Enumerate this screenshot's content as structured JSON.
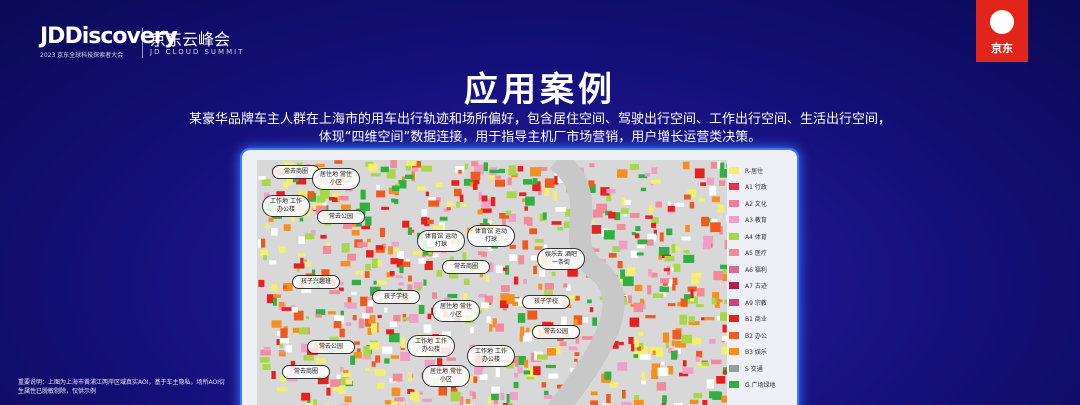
{
  "header": {
    "logo": "JDDiscovery",
    "logo_sub": "2023 京东全球科技探索者大会",
    "summit_cn": "京东云峰会",
    "summit_en": "JD CLOUD SUMMIT",
    "brand": "京东"
  },
  "title": "应用案例",
  "description": [
    "某豪华品牌车主人群在上海市的用车出行轨迹和场所偏好，包含居住空间、驾驶出行空间、工作出行空间、生活出行空间，",
    "体现“四维空间”数据连接，用于指导主机厂市场营销，用户增长运营类决策。"
  ],
  "map": {
    "labels": [
      "常去商圈",
      "居住地 常住小区",
      "工作地 工作办公楼",
      "常去公园",
      "体育馆 运动打球",
      "体育馆 运动打球",
      "常去商圈",
      "娱乐去 酒吧一条街",
      "孩子兴趣班",
      "孩子学校",
      "居住地 常住小区",
      "孩子学校",
      "常去公园",
      "工作地 工作办公楼",
      "工作地 工作办公楼",
      "常去公园",
      "居住地 常住小区",
      "常去商圈"
    ],
    "legend": [
      {
        "label": "R-居住",
        "color": "#f4f06a"
      },
      {
        "label": "A1 行政",
        "color": "#e8304a"
      },
      {
        "label": "A2 文化",
        "color": "#f27ba0"
      },
      {
        "label": "A3 教育",
        "color": "#f0a0c8"
      },
      {
        "label": "A4 体育",
        "color": "#a8d84a"
      },
      {
        "label": "A5 医疗",
        "color": "#f28a9a"
      },
      {
        "label": "A6 福利",
        "color": "#d86a9a"
      },
      {
        "label": "A7 古迹",
        "color": "#b0204a"
      },
      {
        "label": "A9 宗教",
        "color": "#d0407a"
      },
      {
        "label": "B1 商业",
        "color": "#e82020"
      },
      {
        "label": "B2 办公",
        "color": "#f05a20"
      },
      {
        "label": "B3 娱乐",
        "color": "#f59020"
      },
      {
        "label": "S 交通",
        "color": "#9a9a9a"
      },
      {
        "label": "G 广场绿地",
        "color": "#30b040"
      }
    ]
  },
  "footnote": "重要说明：上图为上海市黄浦江两岸区域真实AOI，基于车主隐私，场所AOI衍生属性已脱敏剔除，仅供示例"
}
